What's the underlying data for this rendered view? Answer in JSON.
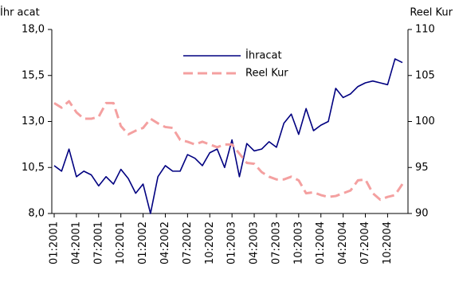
{
  "chart_data": {
    "type": "line",
    "y_label": "İhr acat",
    "y2_label": "Reel Kur",
    "categories": [
      "01:2001",
      null,
      null,
      "04:2001",
      null,
      null,
      "07:2001",
      null,
      null,
      "10:2001",
      null,
      null,
      "01:2002",
      null,
      null,
      "04:2002",
      null,
      null,
      "07:2002",
      null,
      null,
      "10:2002",
      null,
      null,
      "01:2003",
      null,
      null,
      "04:2003",
      null,
      null,
      "07:2003",
      null,
      null,
      "10:2003",
      null,
      null,
      "01:2004",
      null,
      null,
      "04:2004",
      null,
      null,
      "07:2004",
      null,
      null,
      "10:2004",
      null,
      null
    ],
    "series": [
      {
        "name": "İhracat",
        "color": "#000080",
        "axis": "y",
        "values": [
          10.6,
          10.3,
          11.5,
          10.0,
          10.3,
          10.1,
          9.5,
          10.0,
          9.6,
          10.4,
          9.9,
          9.1,
          9.6,
          8.0,
          10.0,
          10.6,
          10.3,
          10.3,
          11.2,
          11.0,
          10.6,
          11.3,
          11.5,
          10.5,
          12.0,
          10.0,
          11.8,
          11.4,
          11.5,
          11.9,
          11.6,
          12.9,
          13.4,
          12.3,
          13.7,
          12.5,
          12.8,
          13.0,
          14.8,
          14.3,
          14.5,
          14.9,
          15.1,
          15.2,
          15.1,
          15.0,
          16.4,
          16.2
        ]
      },
      {
        "name": "Reel Kur",
        "color": "#f4a0a0",
        "axis": "y2",
        "dashed": true,
        "values": [
          102.0,
          101.5,
          102.2,
          101.0,
          100.3,
          100.3,
          100.5,
          102.0,
          102.0,
          99.5,
          98.6,
          99.0,
          99.3,
          100.3,
          99.8,
          99.4,
          99.3,
          98.0,
          97.8,
          97.5,
          97.8,
          97.5,
          97.2,
          97.5,
          97.5,
          96.5,
          95.5,
          95.4,
          94.5,
          94.0,
          93.7,
          93.7,
          94.0,
          93.6,
          92.2,
          92.3,
          92.0,
          91.8,
          91.9,
          92.2,
          92.5,
          93.6,
          93.7,
          92.2,
          91.5,
          91.8,
          92.0,
          93.2
        ]
      }
    ],
    "ylim": [
      8,
      18
    ],
    "yticks": [
      {
        "value": 8,
        "label": "8,0"
      },
      {
        "value": 10.5,
        "label": "10,5"
      },
      {
        "value": 13,
        "label": "13,0"
      },
      {
        "value": 15.5,
        "label": "15,5"
      },
      {
        "value": 18,
        "label": "18,0"
      }
    ],
    "y2lim": [
      90,
      110
    ],
    "y2ticks": [
      90,
      95,
      100,
      105,
      110
    ],
    "grid": false
  }
}
